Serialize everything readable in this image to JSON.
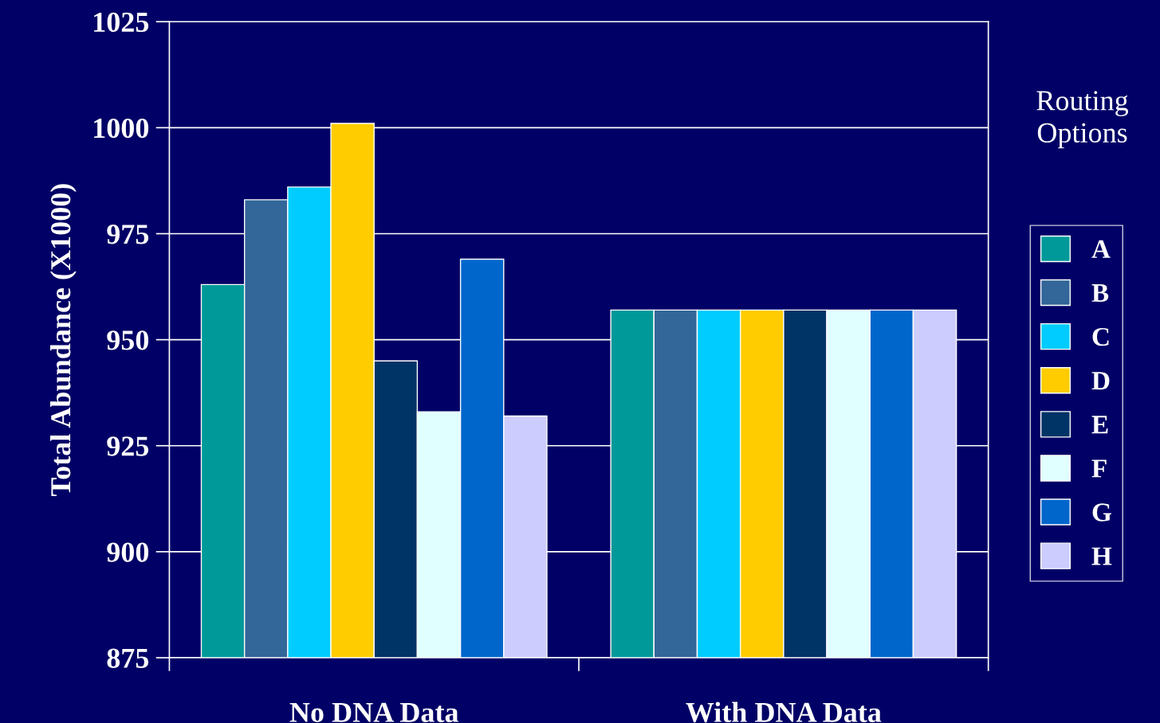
{
  "chart_data": {
    "type": "bar",
    "ylabel": "Total Abundance (X1000)",
    "legend_title": "Routing Options",
    "categories": [
      "No DNA Data",
      "With DNA Data"
    ],
    "series": [
      {
        "name": "A",
        "color": "#009999",
        "values": [
          963,
          957
        ]
      },
      {
        "name": "B",
        "color": "#336699",
        "values": [
          983,
          957
        ]
      },
      {
        "name": "C",
        "color": "#00ccff",
        "values": [
          986,
          957
        ]
      },
      {
        "name": "D",
        "color": "#ffcc00",
        "values": [
          1001,
          957
        ]
      },
      {
        "name": "E",
        "color": "#003366",
        "values": [
          945,
          957
        ]
      },
      {
        "name": "F",
        "color": "#e0ffff",
        "values": [
          933,
          957
        ]
      },
      {
        "name": "G",
        "color": "#0066cc",
        "values": [
          969,
          957
        ]
      },
      {
        "name": "H",
        "color": "#ccccff",
        "values": [
          932,
          957
        ]
      }
    ],
    "ylim": [
      875,
      1025
    ],
    "yticks": [
      875,
      900,
      925,
      950,
      975,
      1000,
      1025
    ],
    "grid": "y",
    "legend": "right"
  }
}
